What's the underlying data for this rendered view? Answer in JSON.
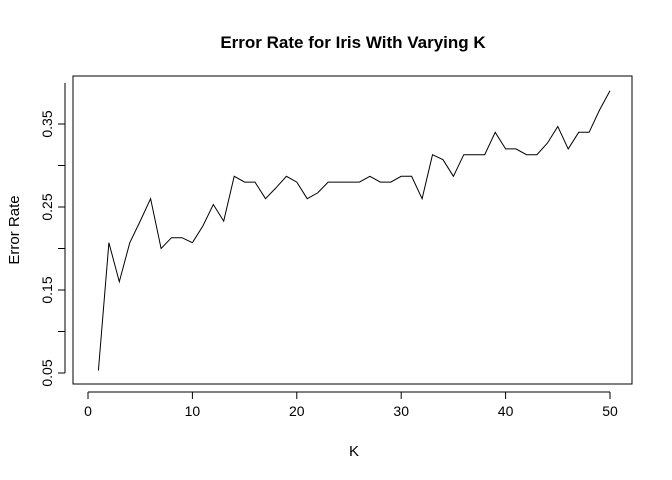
{
  "chart_data": {
    "type": "line",
    "title": "Error Rate for Iris With Varying K",
    "xlabel": "K",
    "ylabel": "Error Rate",
    "xlim": [
      0,
      50
    ],
    "ylim": [
      0.04,
      0.4
    ],
    "x_ticks": [
      0,
      10,
      20,
      30,
      40,
      50
    ],
    "x_tick_labels": [
      "0",
      "10",
      "20",
      "30",
      "40",
      "50"
    ],
    "y_ticks": [
      0.05,
      0.15,
      0.25,
      0.35
    ],
    "y_tick_labels": [
      "0.05",
      "0.15",
      "0.25",
      "0.35"
    ],
    "grid": false,
    "legend": "none",
    "line_color": "#000000",
    "series": [
      {
        "x": [
          1,
          2,
          3,
          4,
          5,
          6,
          7,
          8,
          9,
          10,
          11,
          12,
          13,
          14,
          15,
          16,
          17,
          18,
          19,
          20,
          21,
          22,
          23,
          24,
          25,
          26,
          27,
          28,
          29,
          30,
          31,
          32,
          33,
          34,
          35,
          36,
          37,
          38,
          39,
          40,
          41,
          42,
          43,
          44,
          45,
          46,
          47,
          48,
          49,
          50
        ],
        "values": [
          0.053,
          0.207,
          0.16,
          0.207,
          0.233,
          0.26,
          0.2,
          0.213,
          0.213,
          0.207,
          0.227,
          0.253,
          0.233,
          0.287,
          0.28,
          0.28,
          0.26,
          0.273,
          0.287,
          0.28,
          0.26,
          0.267,
          0.28,
          0.28,
          0.28,
          0.28,
          0.287,
          0.28,
          0.28,
          0.287,
          0.287,
          0.26,
          0.313,
          0.307,
          0.287,
          0.313,
          0.313,
          0.313,
          0.34,
          0.32,
          0.32,
          0.313,
          0.313,
          0.327,
          0.347,
          0.32,
          0.34,
          0.34,
          0.367,
          0.39
        ]
      }
    ]
  }
}
